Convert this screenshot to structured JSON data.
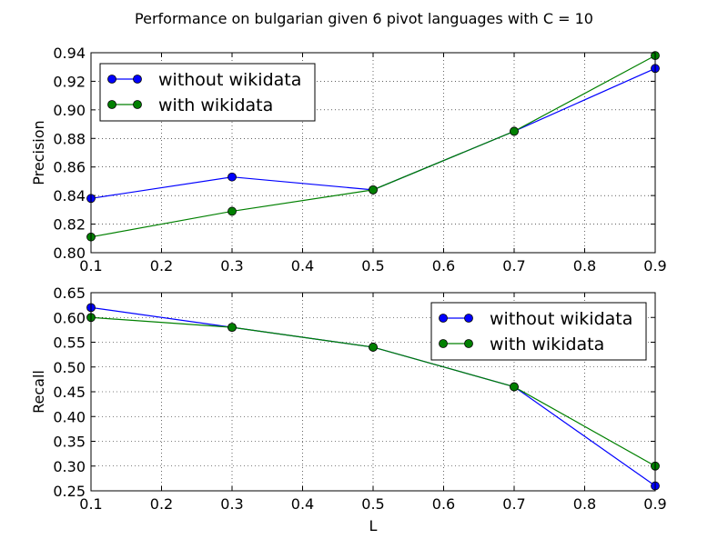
{
  "figure": {
    "title": "Performance on bulgarian given 6 pivot languages with C = 10"
  },
  "chart_data": [
    {
      "type": "line",
      "title": "",
      "xlabel": "",
      "ylabel": "Precision",
      "xlim": [
        0.1,
        0.9
      ],
      "ylim": [
        0.8,
        0.94
      ],
      "xticks": [
        "0.1",
        "0.2",
        "0.3",
        "0.4",
        "0.5",
        "0.6",
        "0.7",
        "0.8",
        "0.9"
      ],
      "yticks": [
        "0.80",
        "0.82",
        "0.84",
        "0.86",
        "0.88",
        "0.90",
        "0.92",
        "0.94"
      ],
      "grid": true,
      "legend_position": "top-left",
      "x": [
        0.1,
        0.3,
        0.5,
        0.7,
        0.9
      ],
      "series": [
        {
          "name": "without wikidata",
          "color": "#0000ff",
          "values": [
            0.838,
            0.853,
            0.844,
            0.885,
            0.929
          ]
        },
        {
          "name": "with wikidata",
          "color": "#008000",
          "values": [
            0.811,
            0.829,
            0.844,
            0.885,
            0.938
          ]
        }
      ]
    },
    {
      "type": "line",
      "title": "",
      "xlabel": "L",
      "ylabel": "Recall",
      "xlim": [
        0.1,
        0.9
      ],
      "ylim": [
        0.25,
        0.65
      ],
      "xticks": [
        "0.1",
        "0.2",
        "0.3",
        "0.4",
        "0.5",
        "0.6",
        "0.7",
        "0.8",
        "0.9"
      ],
      "yticks": [
        "0.25",
        "0.30",
        "0.35",
        "0.40",
        "0.45",
        "0.50",
        "0.55",
        "0.60",
        "0.65"
      ],
      "grid": true,
      "legend_position": "top-right",
      "x": [
        0.1,
        0.3,
        0.5,
        0.7,
        0.9
      ],
      "series": [
        {
          "name": "without wikidata",
          "color": "#0000ff",
          "values": [
            0.62,
            0.58,
            0.54,
            0.46,
            0.26
          ]
        },
        {
          "name": "with wikidata",
          "color": "#008000",
          "values": [
            0.6,
            0.58,
            0.54,
            0.46,
            0.3
          ]
        }
      ]
    }
  ]
}
